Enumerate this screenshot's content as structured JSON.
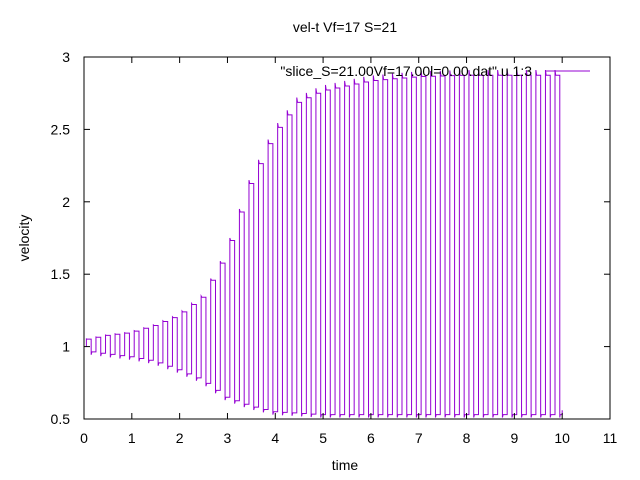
{
  "chart_data": {
    "type": "line",
    "title": "vel-t Vf=17 S=21",
    "xlabel": "time",
    "ylabel": "velocity",
    "xlim": [
      0,
      11
    ],
    "ylim": [
      0.5,
      3
    ],
    "x_ticks": [
      "0",
      "1",
      "2",
      "3",
      "4",
      "5",
      "6",
      "7",
      "8",
      "9",
      "10",
      "11"
    ],
    "y_ticks": [
      "0.5",
      "1",
      "1.5",
      "2",
      "2.5",
      "3"
    ],
    "legend_position": "top-right",
    "grid": false,
    "series": [
      {
        "name": "\"slice_S=21.00Vf=17.00l=0.00.dat\" u 1:3",
        "color": "#9400d3",
        "shape": "oscillating square wave with growing amplitude",
        "period": 0.2,
        "x_start": 0.05,
        "x_end": 10.0,
        "envelope": [
          {
            "x": 0.05,
            "max": 1.05,
            "min": 0.95
          },
          {
            "x": 0.5,
            "max": 1.08,
            "min": 0.93
          },
          {
            "x": 1.0,
            "max": 1.1,
            "min": 0.91
          },
          {
            "x": 1.5,
            "max": 1.15,
            "min": 0.88
          },
          {
            "x": 2.0,
            "max": 1.22,
            "min": 0.82
          },
          {
            "x": 2.5,
            "max": 1.35,
            "min": 0.75
          },
          {
            "x": 3.0,
            "max": 1.65,
            "min": 0.63
          },
          {
            "x": 3.5,
            "max": 2.15,
            "min": 0.57
          },
          {
            "x": 4.0,
            "max": 2.5,
            "min": 0.53
          },
          {
            "x": 4.5,
            "max": 2.72,
            "min": 0.52
          },
          {
            "x": 5.0,
            "max": 2.8,
            "min": 0.51
          },
          {
            "x": 6.0,
            "max": 2.87,
            "min": 0.51
          },
          {
            "x": 7.0,
            "max": 2.9,
            "min": 0.51
          },
          {
            "x": 8.0,
            "max": 2.91,
            "min": 0.51
          },
          {
            "x": 9.0,
            "max": 2.91,
            "min": 0.51
          },
          {
            "x": 10.0,
            "max": 2.91,
            "min": 0.51
          }
        ]
      }
    ]
  }
}
